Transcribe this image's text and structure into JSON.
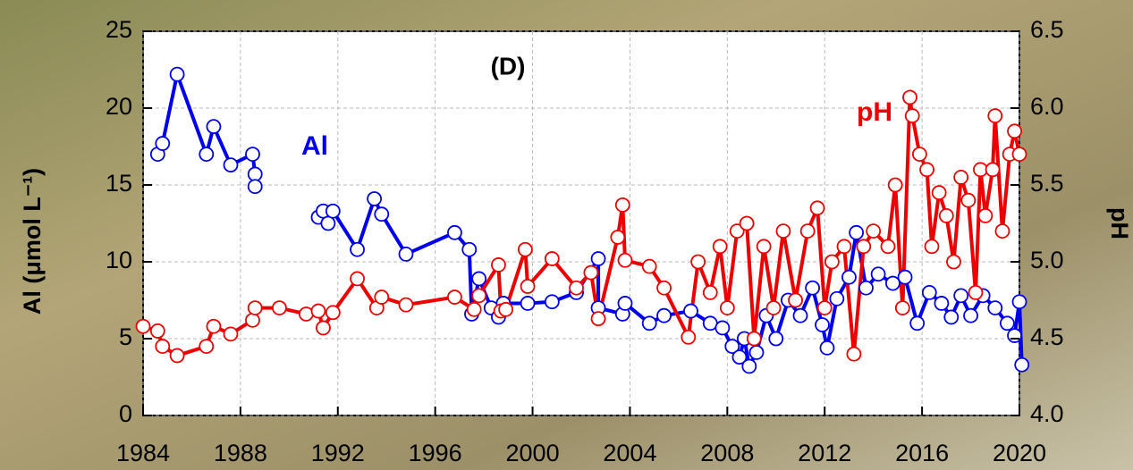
{
  "chart_data": {
    "type": "line",
    "panel_label": "(D)",
    "ylabel": "Al (μmol L⁻¹)",
    "y2label": "pH",
    "xlim": [
      1984,
      2020
    ],
    "xticks": [
      1984,
      1988,
      1992,
      1996,
      2000,
      2004,
      2008,
      2012,
      2016,
      2020
    ],
    "ylim": [
      0,
      25
    ],
    "yticks": [
      0,
      5,
      10,
      15,
      20,
      25
    ],
    "y2lim": [
      4,
      6.5
    ],
    "y2ticks": [
      {
        "value": 4,
        "label": "4.0"
      },
      4.5,
      {
        "value": 5,
        "label": "5.0"
      },
      5.5,
      {
        "value": 6,
        "label": "6.0"
      },
      6.5
    ],
    "grid": true,
    "series": [
      {
        "name": "Al",
        "color": "#0000ee",
        "x": [
          1984.6,
          1984.8,
          1985.4,
          1986.6,
          1986.9,
          1987.6,
          1988.5,
          1988.6,
          1988.6,
          null,
          1991.2,
          1991.4,
          1991.6,
          1991.8,
          1992.8,
          1993.5,
          1993.8,
          1994.8,
          1996.8,
          1997.4,
          1997.5,
          1997.8,
          1998.3,
          1998.6,
          1998.8,
          1999.8,
          2000.8,
          2001.8,
          2002.7,
          2002.7,
          2003.7,
          2003.8,
          2004.8,
          2005.4,
          2006.5,
          2007.3,
          2007.8,
          2008.2,
          2008.5,
          2008.7,
          2008.9,
          2009.2,
          2009.6,
          2010.0,
          2010.5,
          2011.0,
          2011.5,
          2011.9,
          2012.1,
          2012.5,
          2013.0,
          2013.3,
          2013.7,
          2014.2,
          2014.8,
          2015.3,
          2015.8,
          2016.3,
          2016.8,
          2017.2,
          2017.6,
          2018.0,
          2018.5,
          2019.0,
          2019.5,
          2019.8,
          2020.0,
          2020.1
        ],
        "values": [
          17.0,
          17.7,
          22.2,
          17.0,
          18.8,
          16.3,
          17.0,
          15.7,
          14.9,
          null,
          12.9,
          13.3,
          12.5,
          13.3,
          10.8,
          14.1,
          13.1,
          10.5,
          11.9,
          10.8,
          6.6,
          8.9,
          7.0,
          6.4,
          7.3,
          7.3,
          7.4,
          8.0,
          10.2,
          7.0,
          6.6,
          7.3,
          6.0,
          6.5,
          6.8,
          6.0,
          5.7,
          4.5,
          3.8,
          5.0,
          3.2,
          4.1,
          6.5,
          5.0,
          7.5,
          6.5,
          8.3,
          5.9,
          4.4,
          7.6,
          9.0,
          11.9,
          8.3,
          9.2,
          8.6,
          9.0,
          6.0,
          8.0,
          7.3,
          6.4,
          7.8,
          6.5,
          7.8,
          7.0,
          6.0,
          5.2,
          7.4,
          3.3
        ]
      },
      {
        "name": "pH",
        "color": "#ee0000",
        "axis": "y2",
        "x": [
          1984.0,
          1984.6,
          1984.8,
          1985.4,
          1986.6,
          1986.9,
          1987.6,
          1988.5,
          1988.6,
          1989.6,
          1990.7,
          1991.2,
          1991.4,
          1991.8,
          1992.8,
          1993.6,
          1993.8,
          1994.8,
          1996.8,
          1997.6,
          1997.8,
          1998.6,
          1998.7,
          1998.9,
          1999.7,
          1999.8,
          2000.8,
          2001.8,
          2002.4,
          2002.7,
          2003.5,
          2003.7,
          2003.8,
          2004.8,
          2005.4,
          2006.4,
          2006.8,
          2007.3,
          2007.7,
          2008.0,
          2008.4,
          2008.8,
          2009.1,
          2009.5,
          2009.9,
          2010.3,
          2010.8,
          2011.3,
          2011.7,
          2012.0,
          2012.3,
          2012.8,
          2013.2,
          2013.6,
          2014.0,
          2014.6,
          2014.9,
          2015.2,
          2015.5,
          2015.6,
          2015.9,
          2016.2,
          2016.4,
          2016.7,
          2017.0,
          2017.3,
          2017.6,
          2017.9,
          2018.2,
          2018.4,
          2018.6,
          2018.9,
          2019.0,
          2019.3,
          2019.6,
          2019.8,
          2020.0
        ],
        "values": [
          4.58,
          4.55,
          4.45,
          4.39,
          4.45,
          4.58,
          4.53,
          4.62,
          4.7,
          4.7,
          4.66,
          4.68,
          4.57,
          4.67,
          4.89,
          4.7,
          4.77,
          4.72,
          4.77,
          4.69,
          4.78,
          4.98,
          4.68,
          4.69,
          5.08,
          4.84,
          5.02,
          4.83,
          4.93,
          4.63,
          5.16,
          5.37,
          5.01,
          4.97,
          4.83,
          4.51,
          5.0,
          4.8,
          5.1,
          4.7,
          5.2,
          5.25,
          4.5,
          5.1,
          4.7,
          5.2,
          4.75,
          5.2,
          5.35,
          4.7,
          5.0,
          5.1,
          4.4,
          5.1,
          5.2,
          5.1,
          5.5,
          4.7,
          6.07,
          5.95,
          5.7,
          5.6,
          5.1,
          5.45,
          5.3,
          5.0,
          5.55,
          5.4,
          4.8,
          5.6,
          5.3,
          5.6,
          5.95,
          5.2,
          5.7,
          5.85,
          5.7
        ]
      }
    ]
  }
}
